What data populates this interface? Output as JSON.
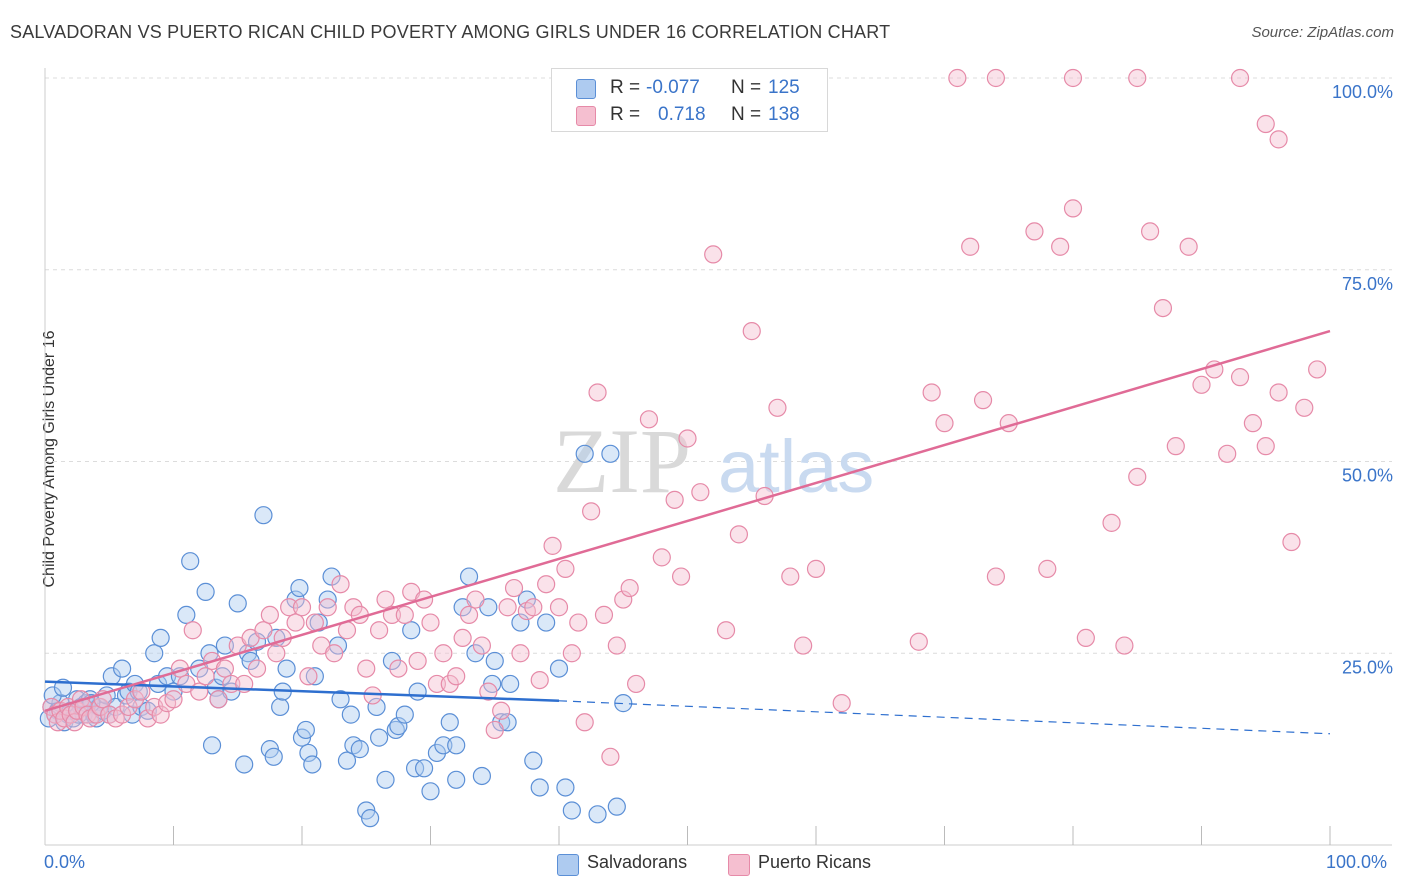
{
  "title": "SALVADORAN VS PUERTO RICAN CHILD POVERTY AMONG GIRLS UNDER 16 CORRELATION CHART",
  "source": "Source: ZipAtlas.com",
  "watermark": {
    "zip": "ZIP",
    "atlas": "atlas"
  },
  "legend": {
    "rows": [
      {
        "r_label": "R =",
        "r_value": "-0.077",
        "n_label": "N =",
        "n_value": "125"
      },
      {
        "r_label": "R =",
        "r_value": "0.718",
        "n_label": "N =",
        "n_value": "138"
      }
    ]
  },
  "bottom_legend": [
    "Salvadorans",
    "Puerto Ricans"
  ],
  "colors": {
    "blue_fill": "#aecbf0",
    "blue_stroke": "#5b8fd6",
    "blue_line": "#2e6fcf",
    "pink_fill": "#f5bfd0",
    "pink_stroke": "#e68aa8",
    "pink_line": "#e06b96",
    "tick_text": "#3a74c9",
    "grid": "#dcdcdc"
  },
  "chart_data": {
    "type": "scatter",
    "title": "SALVADORAN VS PUERTO RICAN CHILD POVERTY AMONG GIRLS UNDER 16 CORRELATION CHART",
    "xlabel": "",
    "ylabel": "Child Poverty Among Girls Under 16",
    "xlim": [
      0,
      100
    ],
    "ylim": [
      0,
      100
    ],
    "x_tick_labels": [
      "0.0%",
      "100.0%"
    ],
    "y_tick_labels": [
      "25.0%",
      "50.0%",
      "75.0%",
      "100.0%"
    ],
    "y_ticks": [
      25,
      50,
      75,
      100
    ],
    "grid": true,
    "legend_position": "top-center",
    "series": [
      {
        "name": "Salvadorans",
        "r": -0.077,
        "n": 125,
        "trend": {
          "x": [
            0,
            40,
            100
          ],
          "y": [
            21.3,
            18.8,
            14.5
          ],
          "solid_until": 40
        },
        "points": [
          [
            0.5,
            18
          ],
          [
            0.8,
            17
          ],
          [
            1,
            17.5
          ],
          [
            1.2,
            18.5
          ],
          [
            1.5,
            16
          ],
          [
            1.8,
            17
          ],
          [
            2,
            17.5
          ],
          [
            2.2,
            16.5
          ],
          [
            2.5,
            19
          ],
          [
            2.8,
            18
          ],
          [
            3,
            17
          ],
          [
            3.2,
            18.5
          ],
          [
            3.5,
            19
          ],
          [
            3.8,
            17
          ],
          [
            4,
            16.5
          ],
          [
            4.2,
            18
          ],
          [
            4.5,
            17.5
          ],
          [
            4.8,
            19.5
          ],
          [
            5,
            17
          ],
          [
            5.2,
            22
          ],
          [
            5.5,
            18
          ],
          [
            6,
            23
          ],
          [
            6.3,
            19.5
          ],
          [
            6.5,
            20
          ],
          [
            6.8,
            17
          ],
          [
            7,
            21
          ],
          [
            7.3,
            20
          ],
          [
            7.5,
            18
          ],
          [
            8,
            17.5
          ],
          [
            8.5,
            25
          ],
          [
            8.8,
            21
          ],
          [
            9,
            27
          ],
          [
            9.5,
            22
          ],
          [
            10,
            20
          ],
          [
            10.5,
            22
          ],
          [
            11,
            30
          ],
          [
            11.3,
            37
          ],
          [
            12,
            23
          ],
          [
            12.5,
            33
          ],
          [
            12.8,
            25
          ],
          [
            13,
            13
          ],
          [
            13.3,
            20.5
          ],
          [
            13.5,
            19
          ],
          [
            13.8,
            22
          ],
          [
            14,
            26
          ],
          [
            14.5,
            20
          ],
          [
            15,
            31.5
          ],
          [
            15.5,
            10.5
          ],
          [
            15.8,
            25
          ],
          [
            16,
            24
          ],
          [
            16.5,
            26.5
          ],
          [
            17,
            43
          ],
          [
            17.5,
            12.5
          ],
          [
            17.8,
            11.5
          ],
          [
            18,
            27
          ],
          [
            18.3,
            18
          ],
          [
            18.5,
            20
          ],
          [
            18.8,
            23
          ],
          [
            19.5,
            32
          ],
          [
            19.8,
            33.5
          ],
          [
            20,
            14
          ],
          [
            20.3,
            15
          ],
          [
            20.5,
            12
          ],
          [
            20.8,
            10.5
          ],
          [
            21,
            22
          ],
          [
            21.3,
            29
          ],
          [
            22,
            32
          ],
          [
            22.3,
            35
          ],
          [
            22.8,
            26
          ],
          [
            23,
            19
          ],
          [
            23.5,
            11
          ],
          [
            23.8,
            17
          ],
          [
            24,
            13
          ],
          [
            24.5,
            12.5
          ],
          [
            25,
            4.5
          ],
          [
            25.3,
            3.5
          ],
          [
            25.8,
            18
          ],
          [
            26,
            14
          ],
          [
            26.5,
            8.5
          ],
          [
            27,
            24
          ],
          [
            27.3,
            15
          ],
          [
            27.5,
            15.5
          ],
          [
            28,
            17
          ],
          [
            28.5,
            28
          ],
          [
            28.8,
            10
          ],
          [
            29,
            20
          ],
          [
            29.5,
            10
          ],
          [
            30,
            7
          ],
          [
            30.5,
            12
          ],
          [
            31,
            13
          ],
          [
            31.5,
            16
          ],
          [
            32,
            13
          ],
          [
            32,
            8.5
          ],
          [
            32.5,
            31
          ],
          [
            33,
            35
          ],
          [
            33.5,
            25
          ],
          [
            34,
            9
          ],
          [
            34.5,
            31
          ],
          [
            34.8,
            21
          ],
          [
            35,
            24
          ],
          [
            35.5,
            16
          ],
          [
            36,
            16
          ],
          [
            36.2,
            21
          ],
          [
            37,
            29
          ],
          [
            37.5,
            32
          ],
          [
            38,
            11
          ],
          [
            38.5,
            7.5
          ],
          [
            39,
            29
          ],
          [
            40,
            23
          ],
          [
            40.5,
            7.5
          ],
          [
            41,
            4.5
          ],
          [
            42,
            51
          ],
          [
            43,
            4
          ],
          [
            44,
            51
          ],
          [
            44.5,
            5
          ],
          [
            45,
            18.5
          ],
          [
            0.3,
            16.5
          ],
          [
            0.6,
            19.5
          ],
          [
            1.4,
            20.5
          ],
          [
            2.6,
            17
          ],
          [
            3.6,
            18.5
          ]
        ]
      },
      {
        "name": "Puerto Ricans",
        "r": 0.718,
        "n": 138,
        "trend": {
          "x": [
            0,
            100
          ],
          "y": [
            17.5,
            67
          ]
        },
        "points": [
          [
            0.5,
            18
          ],
          [
            0.8,
            17
          ],
          [
            1,
            16
          ],
          [
            1.2,
            17.5
          ],
          [
            1.5,
            16.5
          ],
          [
            1.8,
            18
          ],
          [
            2,
            17
          ],
          [
            2.3,
            16
          ],
          [
            2.5,
            17.5
          ],
          [
            2.8,
            19
          ],
          [
            3,
            18
          ],
          [
            3.3,
            17
          ],
          [
            3.5,
            16.5
          ],
          [
            4,
            17
          ],
          [
            4.3,
            18
          ],
          [
            4.5,
            19
          ],
          [
            5,
            17
          ],
          [
            5.5,
            16.5
          ],
          [
            6,
            17
          ],
          [
            6.5,
            18
          ],
          [
            7,
            19
          ],
          [
            7.5,
            20
          ],
          [
            8,
            16.5
          ],
          [
            8.5,
            18
          ],
          [
            9,
            17
          ],
          [
            9.5,
            18.5
          ],
          [
            10,
            19
          ],
          [
            10.5,
            23
          ],
          [
            11,
            21
          ],
          [
            11.5,
            28
          ],
          [
            12,
            20
          ],
          [
            12.5,
            22
          ],
          [
            13,
            24
          ],
          [
            13.5,
            19
          ],
          [
            14,
            23
          ],
          [
            14.5,
            21
          ],
          [
            15,
            26
          ],
          [
            15.5,
            21
          ],
          [
            16,
            27
          ],
          [
            16.5,
            23
          ],
          [
            17,
            28
          ],
          [
            17.5,
            30
          ],
          [
            18,
            25
          ],
          [
            18.5,
            27
          ],
          [
            19,
            31
          ],
          [
            19.5,
            29
          ],
          [
            20,
            31
          ],
          [
            20.5,
            22
          ],
          [
            21,
            29
          ],
          [
            21.5,
            26
          ],
          [
            22,
            31
          ],
          [
            22.5,
            25
          ],
          [
            23,
            34
          ],
          [
            23.5,
            28
          ],
          [
            24,
            31
          ],
          [
            24.5,
            30
          ],
          [
            25,
            23
          ],
          [
            25.5,
            19.5
          ],
          [
            26,
            28
          ],
          [
            26.5,
            32
          ],
          [
            27,
            30
          ],
          [
            27.5,
            23
          ],
          [
            28,
            30
          ],
          [
            28.5,
            33
          ],
          [
            29,
            24
          ],
          [
            29.5,
            32
          ],
          [
            30,
            29
          ],
          [
            30.5,
            21
          ],
          [
            31,
            25
          ],
          [
            31.5,
            21
          ],
          [
            32,
            22
          ],
          [
            32.5,
            27
          ],
          [
            33,
            30
          ],
          [
            33.5,
            32
          ],
          [
            34,
            26
          ],
          [
            34.5,
            20
          ],
          [
            35,
            15
          ],
          [
            35.5,
            17.5
          ],
          [
            36,
            31
          ],
          [
            36.5,
            33.5
          ],
          [
            37,
            25
          ],
          [
            37.5,
            30.5
          ],
          [
            38,
            31
          ],
          [
            38.5,
            21.5
          ],
          [
            39,
            34
          ],
          [
            39.5,
            39
          ],
          [
            40,
            31
          ],
          [
            40.5,
            36
          ],
          [
            41,
            25
          ],
          [
            41.5,
            29
          ],
          [
            42,
            16
          ],
          [
            42.5,
            43.5
          ],
          [
            43,
            59
          ],
          [
            43.5,
            30
          ],
          [
            44,
            11.5
          ],
          [
            44.5,
            26
          ],
          [
            45,
            32
          ],
          [
            45.5,
            33.5
          ],
          [
            46,
            21
          ],
          [
            47,
            55.5
          ],
          [
            48,
            37.5
          ],
          [
            49,
            45
          ],
          [
            49.5,
            35
          ],
          [
            50,
            53
          ],
          [
            51,
            46
          ],
          [
            52,
            77
          ],
          [
            53,
            28
          ],
          [
            54,
            40.5
          ],
          [
            55,
            67
          ],
          [
            56,
            45.5
          ],
          [
            57,
            57
          ],
          [
            58,
            35
          ],
          [
            59,
            26
          ],
          [
            60,
            36
          ],
          [
            62,
            18.5
          ],
          [
            68,
            26.5
          ],
          [
            69,
            59
          ],
          [
            70,
            55
          ],
          [
            72,
            78
          ],
          [
            73,
            58
          ],
          [
            74,
            35
          ],
          [
            75,
            55
          ],
          [
            77,
            80
          ],
          [
            78,
            36
          ],
          [
            79,
            78
          ],
          [
            80,
            83
          ],
          [
            81,
            27
          ],
          [
            83,
            42
          ],
          [
            84,
            26
          ],
          [
            85,
            48
          ],
          [
            86,
            80
          ],
          [
            87,
            70
          ],
          [
            88,
            52
          ],
          [
            89,
            78
          ],
          [
            90,
            60
          ],
          [
            91,
            62
          ],
          [
            92,
            51
          ],
          [
            93,
            61
          ],
          [
            94,
            55
          ],
          [
            95,
            52
          ],
          [
            96,
            59
          ],
          [
            97,
            39.5
          ],
          [
            98,
            57
          ],
          [
            99,
            62
          ],
          [
            71,
            100
          ],
          [
            74,
            100
          ],
          [
            85,
            100
          ],
          [
            93,
            100
          ],
          [
            95,
            94
          ],
          [
            96,
            92
          ],
          [
            80,
            100
          ]
        ]
      }
    ]
  }
}
